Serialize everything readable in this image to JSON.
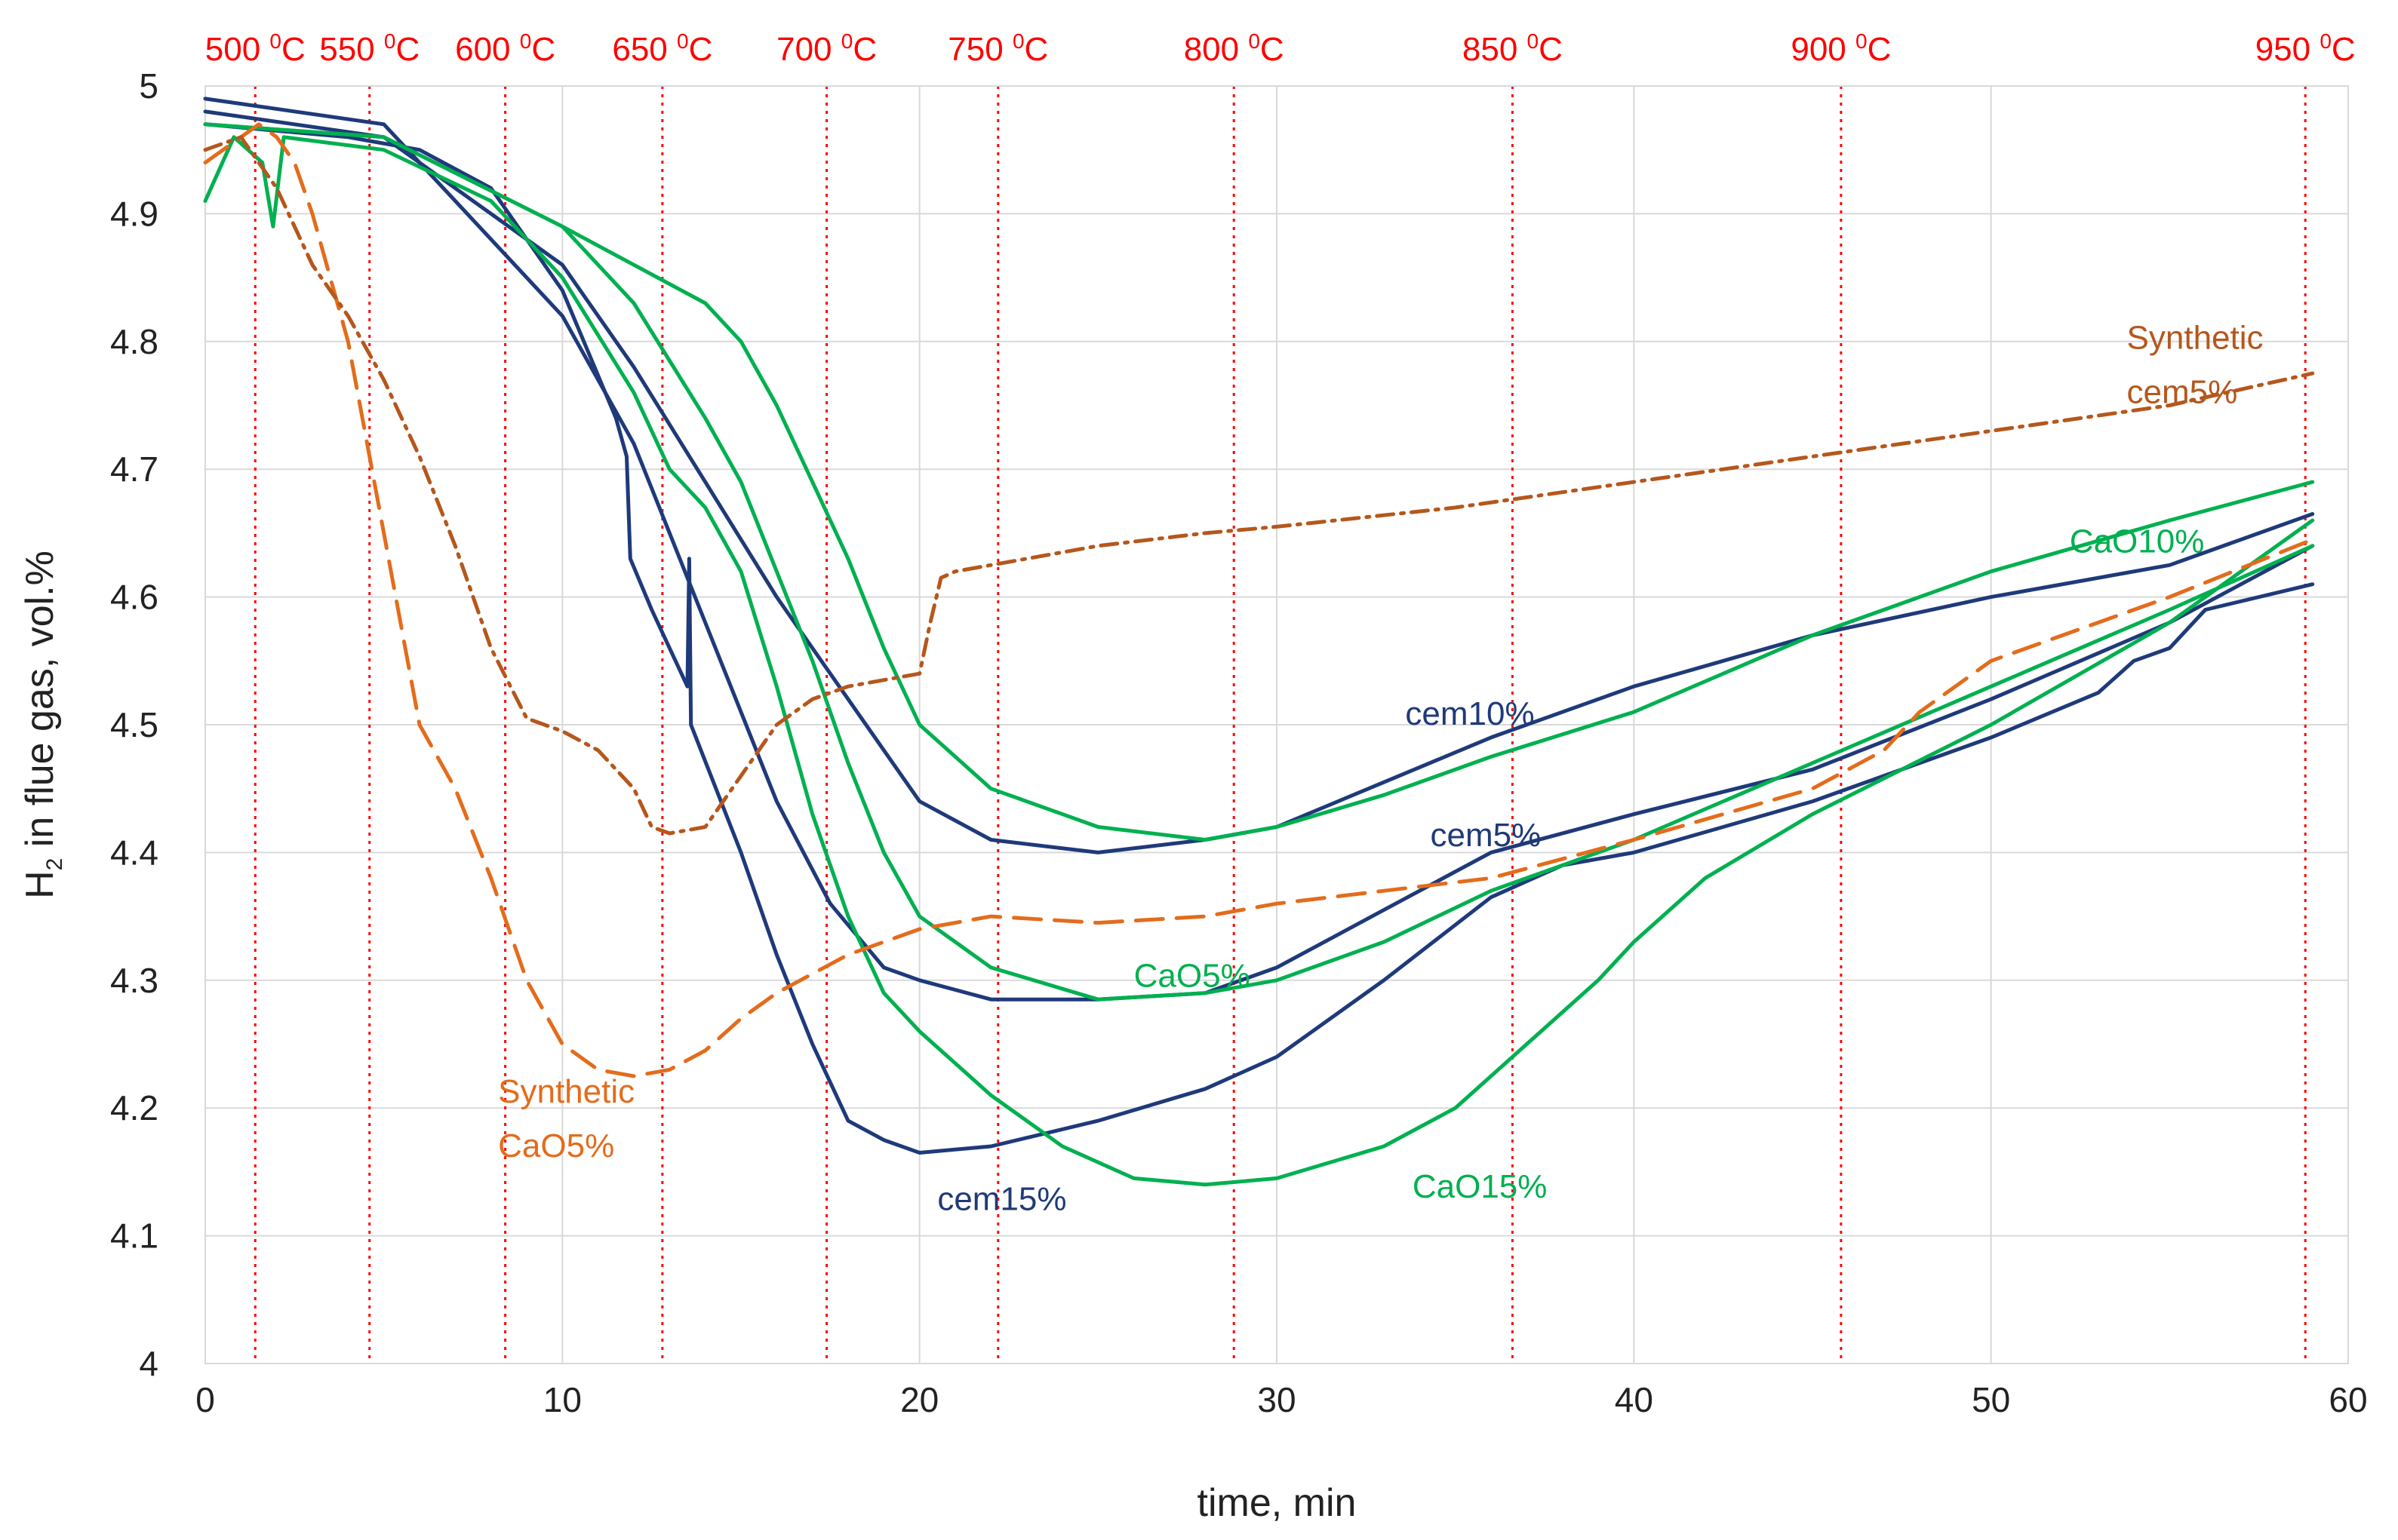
{
  "chart_data": {
    "type": "line",
    "title": "",
    "xlabel": "time, min",
    "ylabel_main": "H",
    "ylabel_sub": "2",
    "ylabel_rest": " in flue gas, vol.%",
    "xlim": [
      0,
      60
    ],
    "ylim": [
      4,
      5
    ],
    "xticks": [
      "0",
      "10",
      "20",
      "30",
      "40",
      "50",
      "60"
    ],
    "yticks": [
      "4",
      "4.1",
      "4.2",
      "4.3",
      "4.4",
      "4.5",
      "4.6",
      "4.7",
      "4.8",
      "4.9",
      "5"
    ],
    "grid": true,
    "colors": {
      "cem": "#1f3a7a",
      "cao": "#00b050",
      "synthetic_cao": "#e36c1c",
      "synthetic_cem": "#b5571c",
      "temperature": "#ff0000",
      "grid": "#d9d9d9"
    },
    "temperature_markers": [
      {
        "time": 1.4,
        "label": "500",
        "sup": "0",
        "unit": "C"
      },
      {
        "time": 4.6,
        "label": "550",
        "sup": "0",
        "unit": "C"
      },
      {
        "time": 8.4,
        "label": "600",
        "sup": "0",
        "unit": "C"
      },
      {
        "time": 12.8,
        "label": "650",
        "sup": "0",
        "unit": "C"
      },
      {
        "time": 17.4,
        "label": "700",
        "sup": "0",
        "unit": "C"
      },
      {
        "time": 22.2,
        "label": "750",
        "sup": "0",
        "unit": "C"
      },
      {
        "time": 28.8,
        "label": "800",
        "sup": "0",
        "unit": "C"
      },
      {
        "time": 36.6,
        "label": "850",
        "sup": "0",
        "unit": "C"
      },
      {
        "time": 45.8,
        "label": "900",
        "sup": "0",
        "unit": "C"
      },
      {
        "time": 58.8,
        "label": "950",
        "sup": "0",
        "unit": "C"
      }
    ],
    "series": [
      {
        "name": "cem5%",
        "color_key": "cem",
        "dash": "solid",
        "label_pos": [
          34.3,
          4.405
        ],
        "x": [
          0,
          5,
          10,
          12,
          14,
          16,
          17.5,
          19,
          20,
          22,
          25,
          28,
          30,
          33,
          36,
          40,
          45,
          50,
          55,
          59
        ],
        "y": [
          4.99,
          4.97,
          4.82,
          4.72,
          4.58,
          4.44,
          4.36,
          4.31,
          4.3,
          4.285,
          4.285,
          4.29,
          4.31,
          4.355,
          4.4,
          4.43,
          4.465,
          4.52,
          4.58,
          4.64
        ]
      },
      {
        "name": "cem10%",
        "color_key": "cem",
        "dash": "solid",
        "label_pos": [
          33.6,
          4.5
        ],
        "x": [
          0,
          5,
          10,
          12,
          14,
          16,
          18,
          20,
          22,
          25,
          28,
          30,
          33,
          36,
          40,
          45,
          50,
          55,
          59
        ],
        "y": [
          4.98,
          4.96,
          4.86,
          4.78,
          4.69,
          4.6,
          4.52,
          4.44,
          4.41,
          4.4,
          4.41,
          4.42,
          4.455,
          4.49,
          4.53,
          4.57,
          4.6,
          4.625,
          4.665
        ]
      },
      {
        "name": "cem15%",
        "color_key": "cem",
        "dash": "solid",
        "label_pos": [
          20.5,
          4.12
        ],
        "x": [
          0,
          4,
          6,
          8,
          10,
          11.5,
          11.8,
          11.9,
          12.5,
          13.5,
          13.55,
          13.6,
          15,
          16,
          17,
          18,
          19,
          20,
          22,
          25,
          28,
          30,
          33,
          36,
          38,
          40,
          45,
          50,
          53,
          54,
          55,
          56,
          59
        ],
        "y": [
          4.97,
          4.96,
          4.95,
          4.92,
          4.84,
          4.74,
          4.71,
          4.63,
          4.59,
          4.53,
          4.63,
          4.5,
          4.4,
          4.32,
          4.25,
          4.19,
          4.175,
          4.165,
          4.17,
          4.19,
          4.215,
          4.24,
          4.3,
          4.365,
          4.39,
          4.4,
          4.44,
          4.49,
          4.525,
          4.55,
          4.56,
          4.59,
          4.61
        ]
      },
      {
        "name": "CaO5%",
        "color_key": "cao",
        "dash": "solid",
        "label_pos": [
          26,
          4.295
        ],
        "x": [
          0,
          5,
          10,
          12,
          14,
          15,
          16,
          17,
          18,
          19,
          20,
          22,
          25,
          28,
          30,
          33,
          36,
          40,
          45,
          50,
          55,
          59
        ],
        "y": [
          4.97,
          4.96,
          4.89,
          4.83,
          4.74,
          4.69,
          4.62,
          4.55,
          4.47,
          4.4,
          4.35,
          4.31,
          4.285,
          4.29,
          4.3,
          4.33,
          4.37,
          4.41,
          4.47,
          4.53,
          4.59,
          4.64
        ]
      },
      {
        "name": "CaO10%",
        "color_key": "cao",
        "dash": "solid",
        "label_pos": [
          52.2,
          4.635
        ],
        "x": [
          0,
          5,
          10,
          12,
          14,
          15,
          16,
          17,
          18,
          19,
          20,
          22,
          25,
          28,
          30,
          33,
          36,
          40,
          45,
          50,
          55,
          59
        ],
        "y": [
          4.97,
          4.96,
          4.89,
          4.86,
          4.83,
          4.8,
          4.75,
          4.69,
          4.63,
          4.56,
          4.5,
          4.45,
          4.42,
          4.41,
          4.42,
          4.445,
          4.475,
          4.51,
          4.57,
          4.62,
          4.66,
          4.69
        ]
      },
      {
        "name": "CaO15%",
        "color_key": "cao",
        "dash": "solid",
        "label_pos": [
          33.8,
          4.13
        ],
        "x": [
          0,
          0.8,
          1.6,
          1.9,
          2.2,
          5,
          8,
          10,
          12,
          13,
          14,
          15,
          16,
          17,
          18,
          19,
          20,
          22,
          24,
          26,
          28,
          30,
          33,
          35,
          37,
          39,
          40,
          42,
          45,
          50,
          55,
          59
        ],
        "y": [
          4.91,
          4.96,
          4.94,
          4.89,
          4.96,
          4.95,
          4.91,
          4.85,
          4.76,
          4.7,
          4.67,
          4.62,
          4.53,
          4.43,
          4.35,
          4.29,
          4.26,
          4.21,
          4.17,
          4.145,
          4.14,
          4.145,
          4.17,
          4.2,
          4.25,
          4.3,
          4.33,
          4.38,
          4.43,
          4.5,
          4.58,
          4.66
        ]
      },
      {
        "name": "Synthetic CaO5%",
        "name_line1": "Synthetic",
        "name_line2": "CaO5%",
        "color_key": "synthetic_cao",
        "dash": "dashed",
        "label_pos": [
          8.2,
          4.19
        ],
        "x": [
          0,
          0.5,
          1,
          1.5,
          2,
          2.5,
          3,
          4,
          5,
          6,
          7,
          8,
          9,
          10,
          11,
          12,
          13,
          14,
          15,
          16,
          17,
          18,
          20,
          22,
          25,
          28,
          30,
          33,
          36,
          40,
          45,
          47,
          48,
          50,
          55,
          59
        ],
        "y": [
          4.94,
          4.95,
          4.96,
          4.97,
          4.96,
          4.94,
          4.9,
          4.8,
          4.65,
          4.5,
          4.45,
          4.38,
          4.3,
          4.25,
          4.23,
          4.225,
          4.23,
          4.245,
          4.27,
          4.29,
          4.305,
          4.32,
          4.34,
          4.35,
          4.345,
          4.35,
          4.36,
          4.37,
          4.38,
          4.41,
          4.45,
          4.48,
          4.51,
          4.55,
          4.6,
          4.645
        ]
      },
      {
        "name": "Synthetic cem5%",
        "name_line1": "Synthetic",
        "name_line2": "cem5%",
        "color_key": "synthetic_cem",
        "dash": "dashdot",
        "label_pos": [
          53.8,
          4.78
        ],
        "x": [
          0,
          1,
          2,
          3,
          4,
          5,
          6,
          7,
          8,
          9,
          10,
          11,
          12,
          12.5,
          13,
          14,
          15,
          16,
          17,
          18,
          19,
          20,
          20.3,
          20.6,
          21,
          22,
          25,
          28,
          30,
          35,
          40,
          45,
          50,
          55,
          59
        ],
        "y": [
          4.95,
          4.96,
          4.92,
          4.86,
          4.82,
          4.77,
          4.71,
          4.64,
          4.56,
          4.505,
          4.495,
          4.48,
          4.45,
          4.42,
          4.415,
          4.42,
          4.46,
          4.5,
          4.52,
          4.53,
          4.535,
          4.54,
          4.58,
          4.615,
          4.62,
          4.625,
          4.64,
          4.65,
          4.655,
          4.67,
          4.69,
          4.71,
          4.73,
          4.75,
          4.775
        ]
      }
    ]
  }
}
